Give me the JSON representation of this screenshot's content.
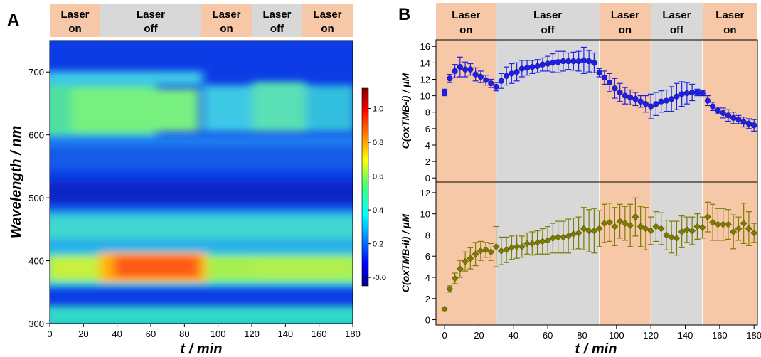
{
  "chart_data": [
    {
      "panel": "A",
      "type": "heatmap",
      "xlabel": "t / min",
      "ylabel": "Wavelength / nm",
      "xlim": [
        0,
        180
      ],
      "ylim": [
        300,
        750
      ],
      "xticks": [
        0,
        20,
        40,
        60,
        80,
        100,
        120,
        140,
        160,
        180
      ],
      "yticks": [
        300,
        400,
        500,
        600,
        700
      ],
      "colorbar": {
        "range": [
          -0.05,
          1.12
        ],
        "ticks": [
          "-0.0",
          "0.2",
          "0.4",
          "0.6",
          "0.8",
          "1.0"
        ],
        "colormap": "jet"
      },
      "bands": [
        {
          "label": [
            "Laser",
            "on"
          ],
          "start": 0,
          "end": 30,
          "color": "#f7c8a8"
        },
        {
          "label": [
            "Laser",
            "off"
          ],
          "start": 30,
          "end": 90,
          "color": "#d8d8d8"
        },
        {
          "label": [
            "Laser",
            "on"
          ],
          "start": 90,
          "end": 120,
          "color": "#f7c8a8"
        },
        {
          "label": [
            "Laser",
            "off"
          ],
          "start": 120,
          "end": 150,
          "color": "#d8d8d8"
        },
        {
          "label": [
            "Laser",
            "on"
          ],
          "start": 150,
          "end": 180,
          "color": "#f7c8a8"
        }
      ]
    },
    {
      "panel": "B",
      "type": "scatter",
      "xlabel": "t / min",
      "xlim": [
        -5,
        182
      ],
      "xticks": [
        0,
        20,
        40,
        60,
        80,
        100,
        120,
        140,
        160,
        180
      ],
      "bands": [
        {
          "label": [
            "Laser",
            "on"
          ],
          "start": -5,
          "end": 30,
          "color": "#f7c8a8"
        },
        {
          "label": [
            "Laser",
            "off"
          ],
          "start": 30,
          "end": 90,
          "color": "#d8d8d8"
        },
        {
          "label": [
            "Laser",
            "on"
          ],
          "start": 90,
          "end": 120,
          "color": "#f7c8a8"
        },
        {
          "label": [
            "Laser",
            "off"
          ],
          "start": 120,
          "end": 150,
          "color": "#d8d8d8"
        },
        {
          "label": [
            "Laser",
            "on"
          ],
          "start": 150,
          "end": 182,
          "color": "#f7c8a8"
        }
      ],
      "subplots": [
        {
          "ylabel": "C(oxTMB-i) / μM",
          "ylim": [
            -0.5,
            16.8
          ],
          "yticks": [
            0,
            2,
            4,
            6,
            8,
            10,
            12,
            14,
            16
          ],
          "marker": "circle",
          "color": "#1f1fe6",
          "x": [
            0,
            3,
            6,
            9,
            12,
            15,
            18,
            21,
            24,
            27,
            30,
            33,
            36,
            39,
            42,
            45,
            48,
            51,
            54,
            57,
            60,
            63,
            66,
            69,
            72,
            75,
            78,
            81,
            84,
            87,
            90,
            93,
            96,
            99,
            102,
            105,
            108,
            111,
            114,
            117,
            120,
            123,
            126,
            129,
            132,
            135,
            138,
            141,
            144,
            147,
            150,
            153,
            156,
            159,
            162,
            165,
            168,
            171,
            174,
            177,
            180
          ],
          "y": [
            10.4,
            12.1,
            13.0,
            13.5,
            13.2,
            13.2,
            12.6,
            12.3,
            11.9,
            11.5,
            11.1,
            11.8,
            12.4,
            12.7,
            12.9,
            13.3,
            13.4,
            13.5,
            13.6,
            13.8,
            13.9,
            14.0,
            14.1,
            14.2,
            14.2,
            14.2,
            14.2,
            14.3,
            14.2,
            14.0,
            12.8,
            12.2,
            11.6,
            10.9,
            10.4,
            10.0,
            9.8,
            9.6,
            9.3,
            9.0,
            8.7,
            9.0,
            9.3,
            9.4,
            9.6,
            9.9,
            10.2,
            10.3,
            10.4,
            10.4,
            10.3,
            9.4,
            8.7,
            8.2,
            7.9,
            7.6,
            7.3,
            7.1,
            6.8,
            6.6,
            6.4
          ],
          "err": [
            0.4,
            0.5,
            0.8,
            1.2,
            0.9,
            0.7,
            0.8,
            0.7,
            0.6,
            0.5,
            0.5,
            0.9,
            1.1,
            1.2,
            1.1,
            1.0,
            0.9,
            0.8,
            0.8,
            0.8,
            0.9,
            1.1,
            1.3,
            1.2,
            1.0,
            1.1,
            1.2,
            1.6,
            1.3,
            1.2,
            0.5,
            0.8,
            1.1,
            1.2,
            1.1,
            1.0,
            0.9,
            0.8,
            0.7,
            1.0,
            1.5,
            1.4,
            1.3,
            1.3,
            1.5,
            1.6,
            1.5,
            1.3,
            1.0,
            0.4,
            0.3,
            0.6,
            0.5,
            0.4,
            0.6,
            0.7,
            0.7,
            0.5,
            0.6,
            0.6,
            0.7
          ]
        },
        {
          "ylabel": "C(oxTMB-ii) / μM",
          "ylim": [
            -0.5,
            13.0
          ],
          "yticks": [
            0,
            2,
            4,
            6,
            8,
            10,
            12
          ],
          "marker": "diamond",
          "color": "#7b7b00",
          "x": [
            0,
            3,
            6,
            9,
            12,
            15,
            18,
            21,
            24,
            27,
            30,
            33,
            36,
            39,
            42,
            45,
            48,
            51,
            54,
            57,
            60,
            63,
            66,
            69,
            72,
            75,
            78,
            81,
            84,
            87,
            90,
            93,
            96,
            99,
            102,
            105,
            108,
            111,
            114,
            117,
            120,
            123,
            126,
            129,
            132,
            135,
            138,
            141,
            144,
            147,
            150,
            153,
            156,
            159,
            162,
            165,
            168,
            171,
            174,
            177,
            180
          ],
          "y": [
            1.0,
            2.9,
            3.9,
            4.8,
            5.5,
            5.8,
            6.2,
            6.5,
            6.6,
            6.4,
            6.9,
            6.5,
            6.6,
            6.8,
            6.9,
            6.9,
            7.2,
            7.2,
            7.3,
            7.4,
            7.5,
            7.7,
            7.8,
            7.8,
            7.9,
            8.1,
            8.2,
            8.6,
            8.4,
            8.4,
            8.6,
            9.1,
            9.2,
            8.8,
            9.3,
            9.1,
            8.9,
            9.7,
            8.8,
            8.6,
            8.4,
            8.8,
            8.6,
            8.0,
            7.8,
            7.7,
            8.3,
            8.5,
            8.4,
            8.8,
            8.7,
            9.7,
            9.2,
            9.0,
            9.0,
            9.0,
            8.3,
            8.6,
            9.1,
            8.6,
            8.2
          ],
          "err": [
            0.2,
            0.3,
            0.5,
            0.8,
            0.9,
            1.0,
            1.1,
            0.9,
            0.7,
            0.8,
            1.9,
            1.3,
            1.2,
            1.1,
            1.1,
            1.0,
            1.0,
            1.1,
            1.1,
            1.2,
            1.3,
            1.4,
            1.5,
            1.5,
            1.6,
            1.5,
            1.5,
            2.0,
            2.0,
            2.1,
            1.7,
            1.8,
            1.8,
            1.8,
            1.6,
            1.6,
            2.0,
            1.8,
            1.9,
            2.0,
            1.3,
            1.4,
            1.5,
            1.4,
            1.5,
            1.6,
            1.5,
            1.2,
            1.3,
            1.2,
            1.0,
            1.4,
            1.7,
            1.5,
            1.5,
            1.4,
            1.6,
            1.1,
            1.9,
            1.6,
            0.9
          ]
        }
      ]
    }
  ]
}
